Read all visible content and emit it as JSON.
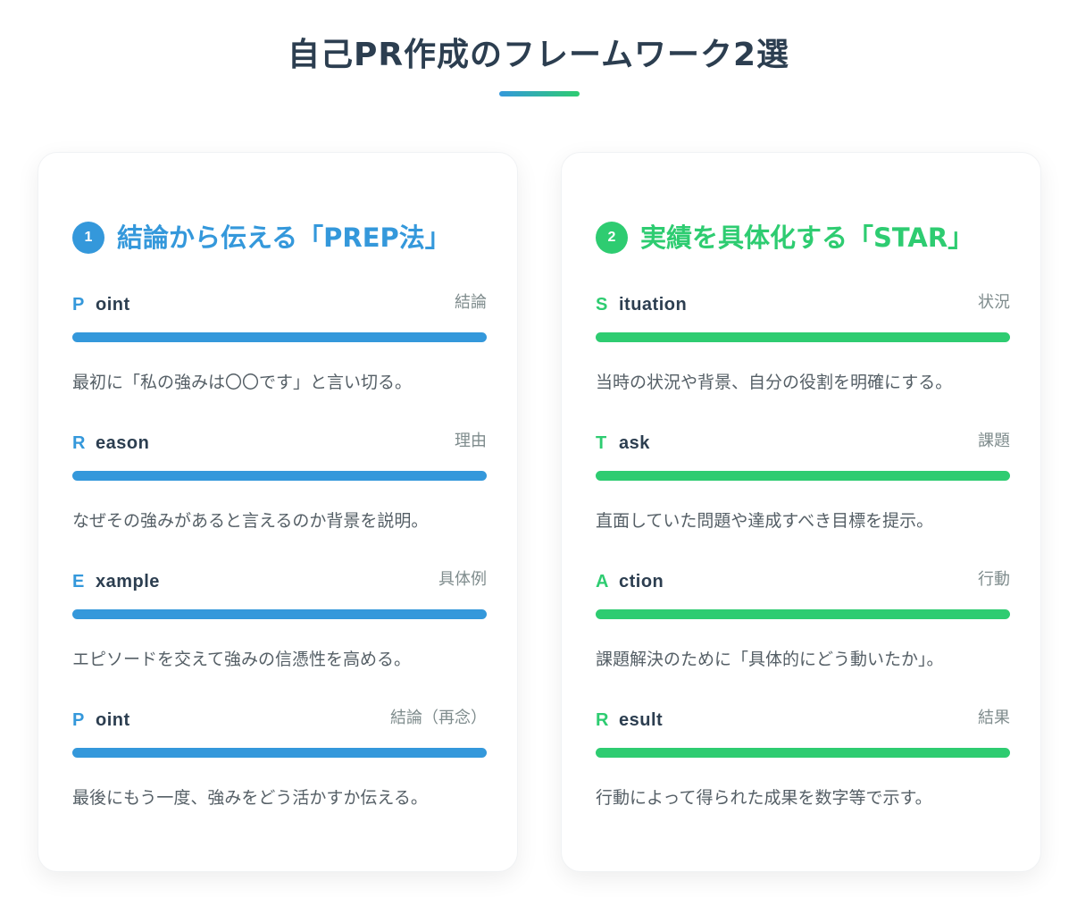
{
  "page": {
    "title": "自己PR作成のフレームワーク2選"
  },
  "colors": {
    "prep_accent": "#3498db",
    "star_accent": "#2ecc71",
    "title_text": "#2c3e50"
  },
  "prep": {
    "number": "1",
    "title": "結論から伝える「PREP法」",
    "steps": [
      {
        "letter": "P",
        "word": "oint",
        "jp": "結論",
        "desc": "最初に「私の強みは〇〇です」と言い切る。"
      },
      {
        "letter": "R",
        "word": "eason",
        "jp": "理由",
        "desc": "なぜその強みがあると言えるのか背景を説明。"
      },
      {
        "letter": "E",
        "word": "xample",
        "jp": "具体例",
        "desc": "エピソードを交えて強みの信憑性を高める。"
      },
      {
        "letter": "P",
        "word": "oint",
        "jp": "結論（再念）",
        "desc": "最後にもう一度、強みをどう活かすか伝える。"
      }
    ]
  },
  "star": {
    "number": "2",
    "title": "実績を具体化する「STAR」",
    "steps": [
      {
        "letter": "S",
        "word": "ituation",
        "jp": "状況",
        "desc": "当時の状況や背景、自分の役割を明確にする。"
      },
      {
        "letter": "T",
        "word": "ask",
        "jp": "課題",
        "desc": "直面していた問題や達成すべき目標を提示。"
      },
      {
        "letter": "A",
        "word": "ction",
        "jp": "行動",
        "desc": "課題解決のために「具体的にどう動いたか」。"
      },
      {
        "letter": "R",
        "word": "esult",
        "jp": "結果",
        "desc": "行動によって得られた成果を数字等で示す。"
      }
    ]
  }
}
